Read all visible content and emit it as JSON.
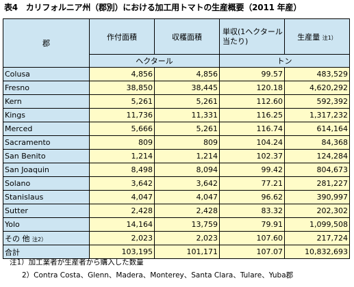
{
  "title": "表4　カリフォルニア州（郡別）における加工用トマトの生産概要（2011 年産）",
  "headers": {
    "county": "郡",
    "planted": "作付面積",
    "harvested": "収穫面積",
    "yield": "単収(1ヘクタール当たり)",
    "production": "生産量",
    "production_note": "注1）",
    "unit_area": "ヘクタール",
    "unit_ton": "トン"
  },
  "rows": [
    {
      "name": "Colusa",
      "planted": "4,856",
      "harvested": "4,856",
      "yield": "99.57",
      "production": "483,529"
    },
    {
      "name": "Fresno",
      "planted": "38,850",
      "harvested": "38,445",
      "yield": "120.18",
      "production": "4,620,292"
    },
    {
      "name": "Kern",
      "planted": "5,261",
      "harvested": "5,261",
      "yield": "112.60",
      "production": "592,392"
    },
    {
      "name": "Kings",
      "planted": "11,736",
      "harvested": "11,331",
      "yield": "116.25",
      "production": "1,317,232"
    },
    {
      "name": "Merced",
      "planted": "5,666",
      "harvested": "5,261",
      "yield": "116.74",
      "production": "614,164"
    },
    {
      "name": "Sacramento",
      "planted": "809",
      "harvested": "809",
      "yield": "104.24",
      "production": "84,368"
    },
    {
      "name": "San Benito",
      "planted": "1,214",
      "harvested": "1,214",
      "yield": "102.37",
      "production": "124,284"
    },
    {
      "name": "San Joaquin",
      "planted": "8,498",
      "harvested": "8,094",
      "yield": "99.42",
      "production": "804,673"
    },
    {
      "name": "Solano",
      "planted": "3,642",
      "harvested": "3,642",
      "yield": "77.21",
      "production": "281,227"
    },
    {
      "name": "Stanislaus",
      "planted": "4,047",
      "harvested": "4,047",
      "yield": "96.62",
      "production": "390,997"
    },
    {
      "name": "Sutter",
      "planted": "2,428",
      "harvested": "2,428",
      "yield": "83.32",
      "production": "202,302"
    },
    {
      "name": "Yolo",
      "planted": "14,164",
      "harvested": "13,759",
      "yield": "79.91",
      "production": "1,099,508"
    }
  ],
  "other": {
    "name": "その 他",
    "note": "注2）",
    "planted": "2,023",
    "harvested": "2,023",
    "yield": "107.60",
    "production": "217,724"
  },
  "total": {
    "name": "合計",
    "planted": "103,195",
    "harvested": "101,171",
    "yield": "107.07",
    "production": "10,832,693"
  },
  "notes": {
    "note1": "注1）加工業者が生産者から購入した数量",
    "note2": "2）Contra Costa、Glenn、Madera、Monterey、Santa Clara、Tulare、Yuba郡"
  },
  "colors": {
    "header_bg": "#cde5f2",
    "value_bg": "#fffcc8",
    "border": "#000000"
  }
}
